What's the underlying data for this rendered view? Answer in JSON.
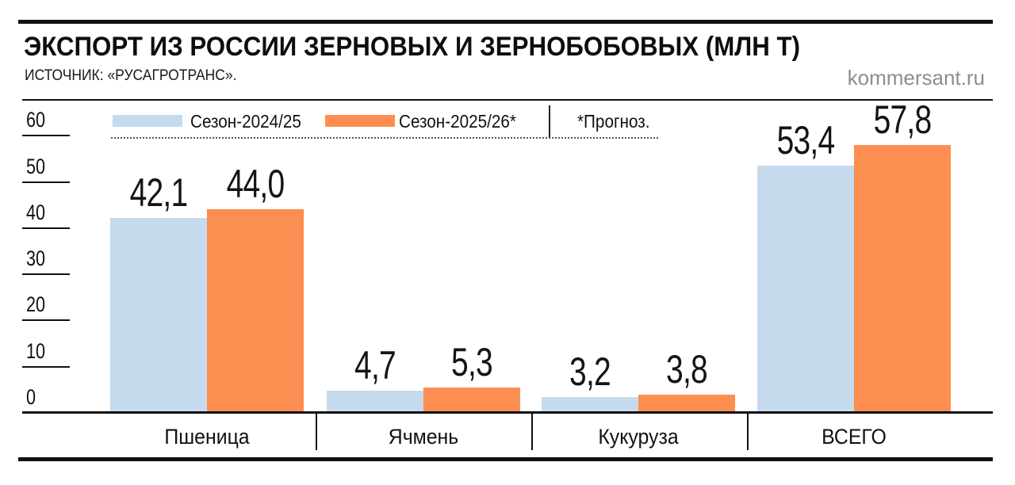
{
  "header": {
    "title": "ЭКСПОРТ ИЗ РОССИИ ЗЕРНОВЫХ И ЗЕРНОБОБОВЫХ (МЛН Т)",
    "source": "ИСТОЧНИК: «РУСАГРОТРАНС».",
    "watermark": "kommersant.ru"
  },
  "legend": {
    "series": [
      "Сезон-2024/25",
      "Сезон-2025/26*"
    ],
    "note": "*Прогноз."
  },
  "colors": {
    "season_2024_25": "#c5dbed",
    "season_2025_26": "#fc8e52",
    "line": "#111111",
    "watermark": "#8e8e8e"
  },
  "chart_data": {
    "type": "bar",
    "title": "ЭКСПОРТ ИЗ РОССИИ ЗЕРНОВЫХ И ЗЕРНОБОБОВЫХ (МЛН Т)",
    "source": "«РУСАГРОТРАНС»",
    "unit": "млн т",
    "categories": [
      "Пшеница",
      "Ячмень",
      "Кукуруза",
      "ВСЕГО"
    ],
    "series": [
      {
        "name": "Сезон-2024/25",
        "values": [
          42.1,
          4.7,
          3.2,
          53.4
        ]
      },
      {
        "name": "Сезон-2025/26*",
        "values": [
          44.0,
          5.3,
          3.8,
          57.8
        ]
      }
    ],
    "ylim": [
      0,
      60
    ],
    "yticks": [
      0,
      10,
      20,
      30,
      40,
      50,
      60
    ],
    "grid": false,
    "legend_position": "top",
    "note": "*Прогноз.",
    "decimal_separator": ","
  }
}
